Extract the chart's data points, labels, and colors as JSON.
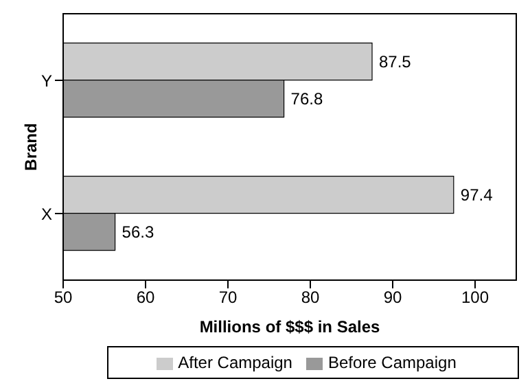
{
  "chart_data": {
    "type": "bar",
    "orientation": "horizontal",
    "xlabel": "Millions of $$$ in Sales",
    "ylabel": "Brand",
    "categories": [
      "Y",
      "X"
    ],
    "series": [
      {
        "name": "After Campaign",
        "color": "#cccccc",
        "values": [
          87.5,
          97.4
        ]
      },
      {
        "name": "Before Campaign",
        "color": "#999999",
        "values": [
          76.8,
          56.3
        ]
      }
    ],
    "xlim": [
      50,
      105
    ],
    "xticks": [
      50,
      60,
      70,
      80,
      90,
      100
    ],
    "data_labels": true,
    "legend": "bottom"
  }
}
